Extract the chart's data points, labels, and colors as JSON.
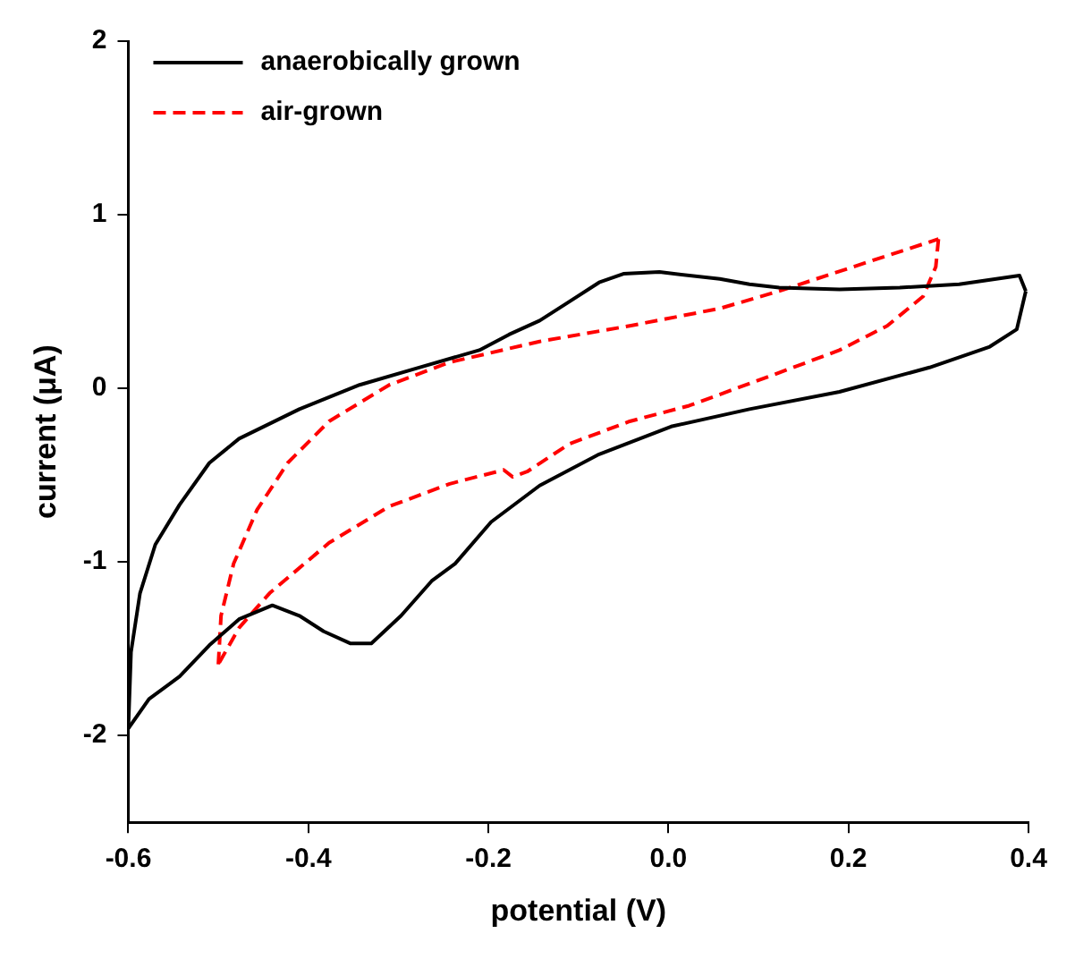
{
  "chart_data": {
    "type": "line",
    "xlabel": "potential (V)",
    "ylabel": "current (μA)",
    "xlim": [
      -0.6,
      0.4
    ],
    "xticks": [
      -0.6,
      -0.4,
      -0.2,
      {
        "value": 0,
        "label": "0.0"
      },
      0.2,
      0.4
    ],
    "ylim": [
      -2.5,
      2
    ],
    "yticks": [
      -2,
      -1,
      0,
      1,
      2
    ],
    "grid": false,
    "legend": "top left",
    "marker": "none",
    "series": [
      {
        "name": "anaerobically grown",
        "color": "#000000",
        "line_style": "solid",
        "x": [
          -0.6,
          -0.577,
          -0.543,
          -0.51,
          -0.477,
          -0.44,
          -0.41,
          -0.383,
          -0.353,
          -0.33,
          -0.297,
          -0.263,
          -0.237,
          -0.197,
          -0.143,
          -0.077,
          0.003,
          0.09,
          0.19,
          0.29,
          0.357,
          0.387,
          0.397
        ],
        "values": [
          -1.96,
          -1.79,
          -1.66,
          -1.48,
          -1.33,
          -1.25,
          -1.31,
          -1.4,
          -1.47,
          -1.47,
          -1.31,
          -1.11,
          -1.01,
          -0.77,
          -0.56,
          -0.38,
          -0.22,
          -0.12,
          -0.02,
          0.12,
          0.24,
          0.34,
          0.56
        ]
      },
      {
        "color": "#000000",
        "line_style": "solid",
        "x": [
          0.397,
          0.39,
          0.323,
          0.257,
          0.19,
          0.123,
          0.09,
          0.057,
          -0.01,
          -0.05,
          -0.077,
          -0.11,
          -0.143,
          -0.177,
          -0.21,
          -0.277,
          -0.343,
          -0.41,
          -0.477,
          -0.51,
          -0.543,
          -0.57,
          -0.587,
          -0.597,
          -0.6
        ],
        "values": [
          0.56,
          0.65,
          0.6,
          0.58,
          0.57,
          0.58,
          0.6,
          0.63,
          0.67,
          0.66,
          0.61,
          0.5,
          0.39,
          0.31,
          0.22,
          0.12,
          0.02,
          -0.12,
          -0.29,
          -0.43,
          -0.67,
          -0.9,
          -1.18,
          -1.52,
          -1.96
        ]
      },
      {
        "name": "air-grown",
        "color": "#ff0000",
        "line_style": "dashed",
        "x": [
          -0.5,
          -0.497,
          -0.483,
          -0.457,
          -0.423,
          -0.377,
          -0.31,
          -0.243,
          -0.143,
          -0.043,
          0.057,
          0.123,
          0.223,
          0.3
        ],
        "values": [
          -1.59,
          -1.31,
          -1.01,
          -0.7,
          -0.43,
          -0.19,
          0.02,
          0.15,
          0.27,
          0.36,
          0.46,
          0.56,
          0.73,
          0.86
        ]
      },
      {
        "color": "#ff0000",
        "line_style": "dashed",
        "x": [
          0.3,
          0.297,
          0.283,
          0.243,
          0.19,
          0.123,
          0.023,
          -0.043,
          -0.11,
          -0.157,
          -0.173,
          -0.183,
          -0.243,
          -0.31,
          -0.377,
          -0.443,
          -0.477,
          -0.5
        ],
        "values": [
          0.86,
          0.7,
          0.53,
          0.36,
          0.22,
          0.09,
          -0.1,
          -0.19,
          -0.32,
          -0.48,
          -0.51,
          -0.47,
          -0.55,
          -0.68,
          -0.89,
          -1.18,
          -1.38,
          -1.59
        ]
      }
    ]
  }
}
